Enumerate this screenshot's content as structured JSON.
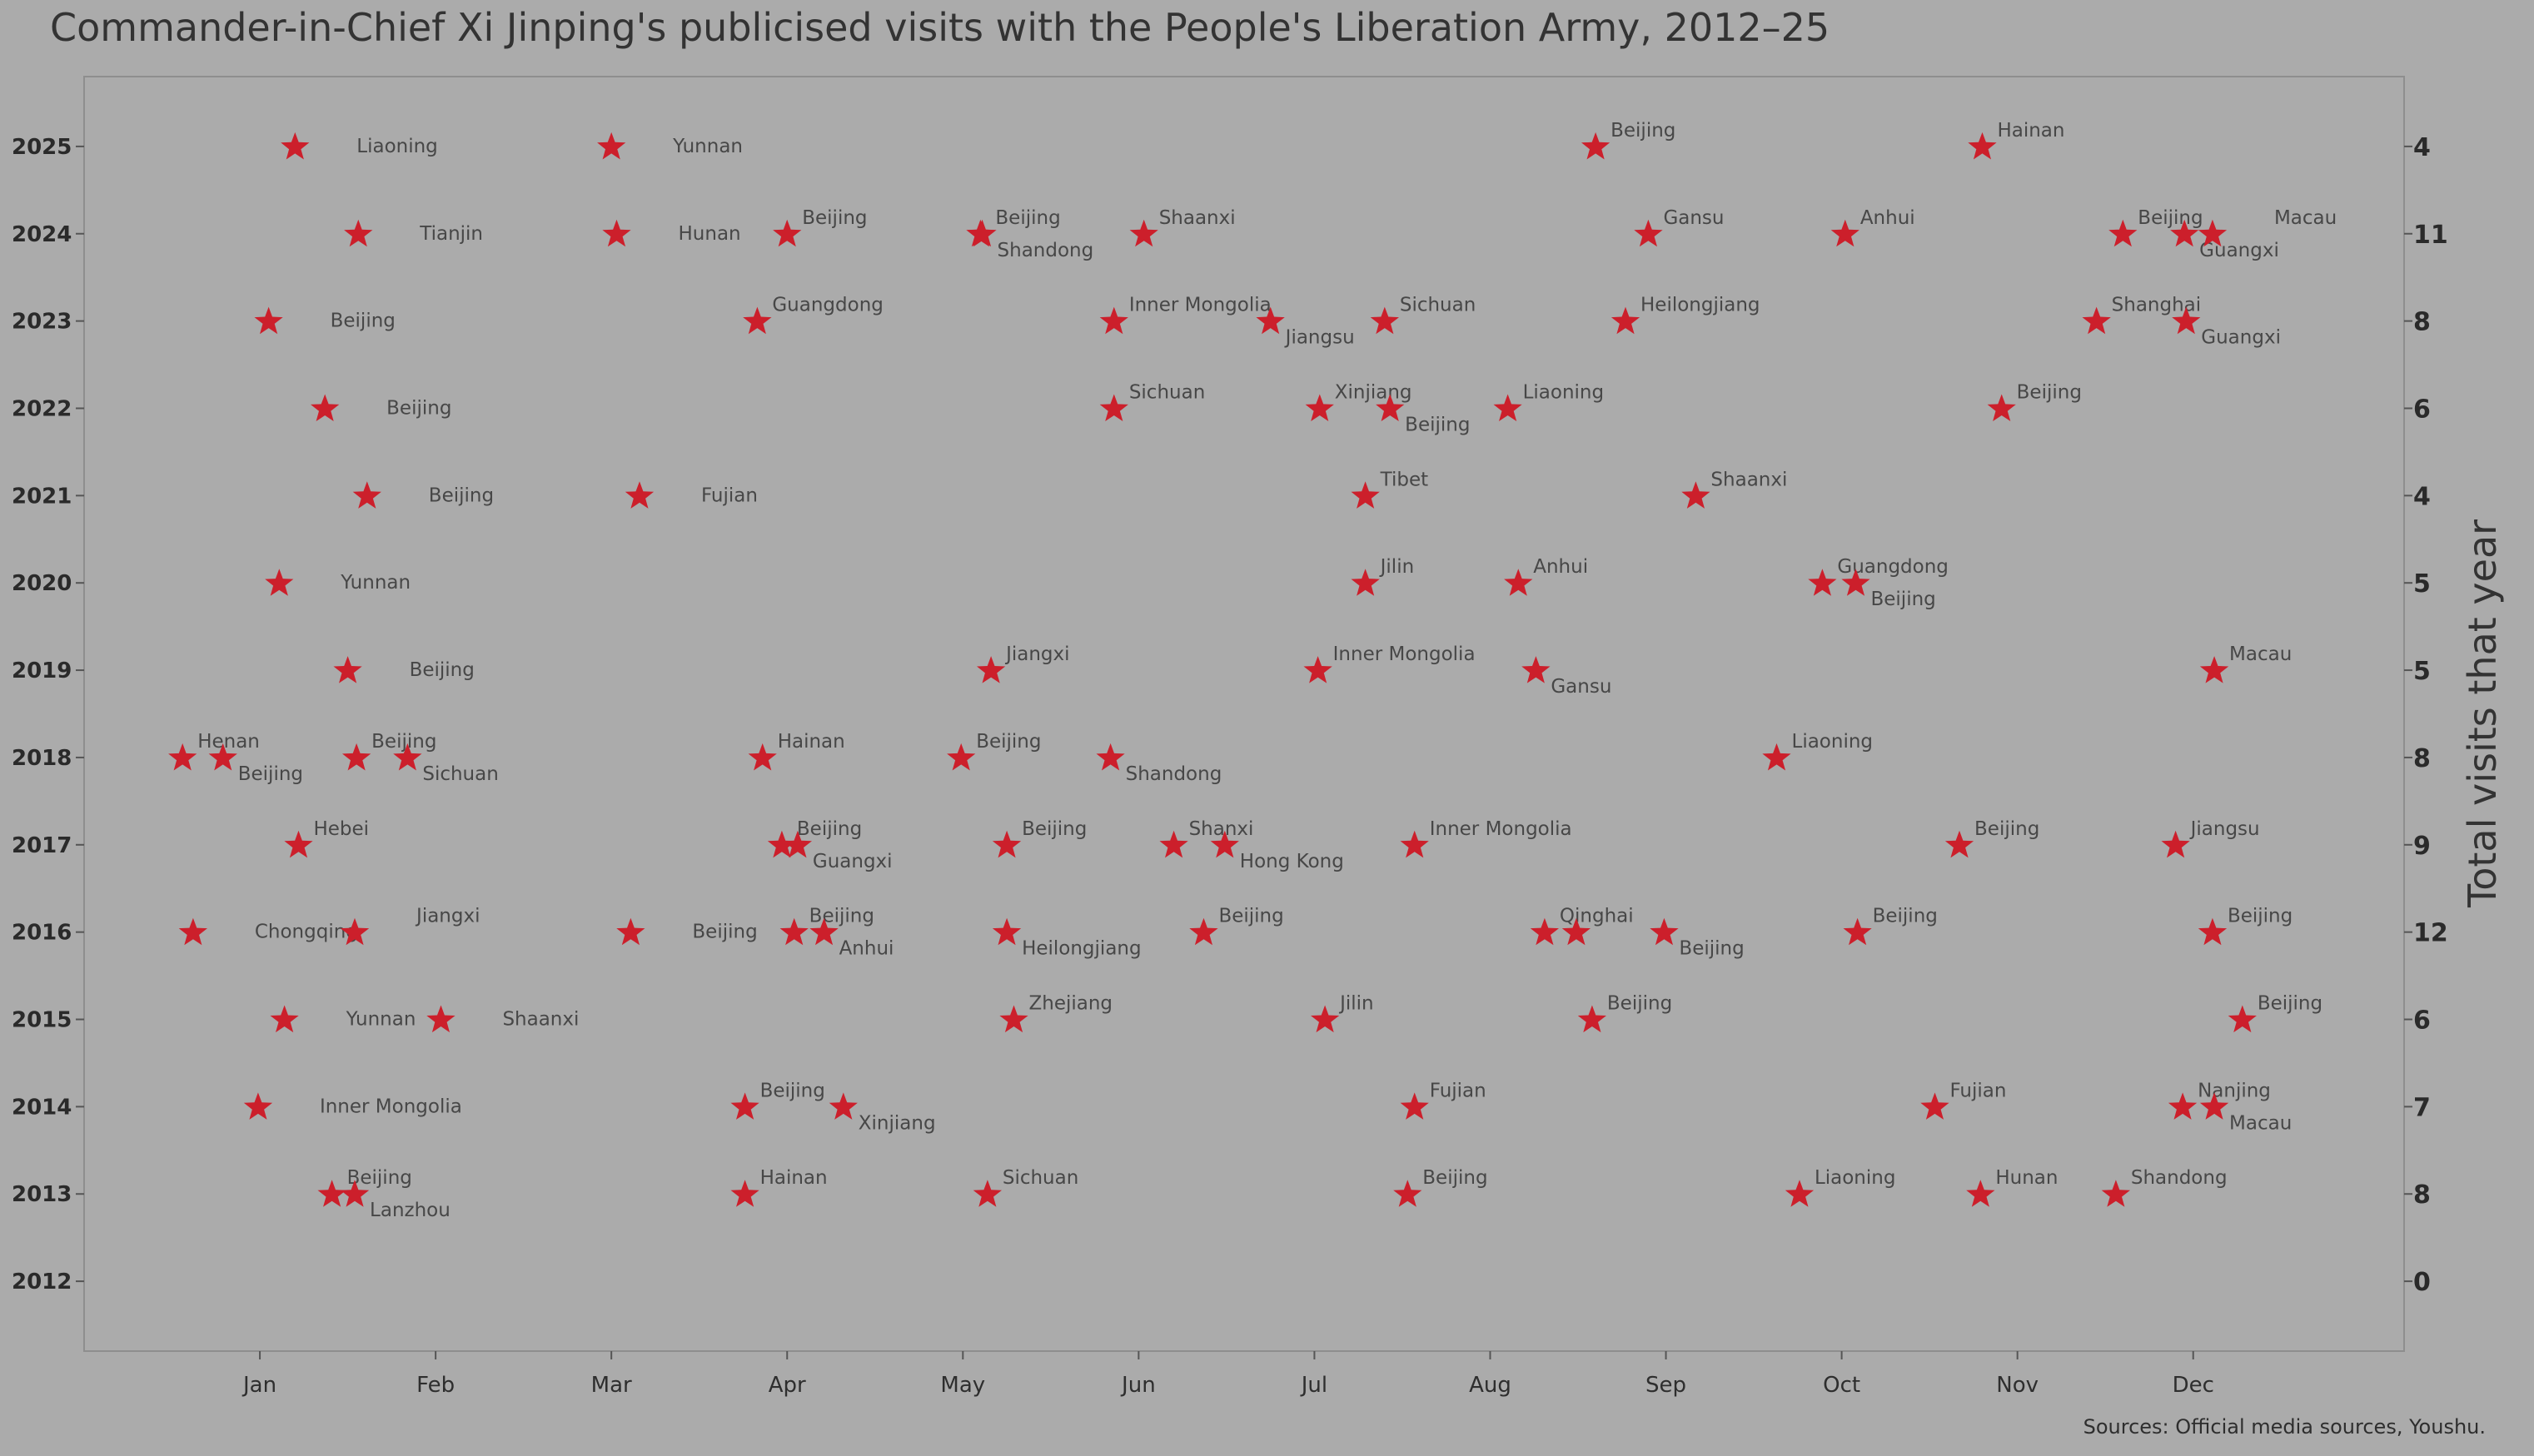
{
  "title": "Commander-in-Chief Xi Jinping's publicised visits with the People's Liberation Army, 2012–25",
  "source": "Sources: Official media sources, Youshu.",
  "chart_data": {
    "type": "scatter",
    "title": "Commander-in-Chief Xi Jinping's publicised visits with the People's Liberation Army, 2012–25",
    "xlabel": "",
    "ylabel": "",
    "ylabel_right": "Total visits that year",
    "xlim": [
      -9,
      123
    ],
    "ylim": [
      2011.2,
      2025.8
    ],
    "month_ticks": [
      "Jan",
      "Feb",
      "Mar",
      "Apr",
      "May",
      "Jun",
      "Jul",
      "Aug",
      "Sep",
      "Oct",
      "Nov",
      "Dec"
    ],
    "month_tick_days": [
      1,
      11,
      21,
      31,
      41,
      51,
      61,
      71,
      81,
      91,
      101,
      111
    ],
    "years": [
      2012,
      2013,
      2014,
      2015,
      2016,
      2017,
      2018,
      2019,
      2020,
      2021,
      2022,
      2023,
      2024,
      2025
    ],
    "totals": [
      0,
      8,
      7,
      6,
      12,
      9,
      8,
      5,
      5,
      4,
      6,
      8,
      11,
      4
    ],
    "marker": "star",
    "marker_color": "#cc1f2b",
    "grid": false,
    "points": [
      {
        "year": 2025,
        "day": 3,
        "place": "Liaoning",
        "pos": "far"
      },
      {
        "year": 2025,
        "day": 21,
        "place": "Yunnan",
        "pos": "far"
      },
      {
        "year": 2025,
        "day": 77,
        "place": "Beijing",
        "pos": "above"
      },
      {
        "year": 2025,
        "day": 99,
        "place": "Hainan",
        "pos": "above"
      },
      {
        "year": 2024,
        "day": 6.6,
        "place": "Tianjin",
        "pos": "far"
      },
      {
        "year": 2024,
        "day": 21.3,
        "place": "Hunan",
        "pos": "far"
      },
      {
        "year": 2024,
        "day": 31,
        "place": "Beijing",
        "pos": "above"
      },
      {
        "year": 2024,
        "day": 42,
        "place": "Beijing",
        "pos": "above"
      },
      {
        "year": 2024,
        "day": 42.1,
        "place": "Shandong",
        "pos": "below"
      },
      {
        "year": 2024,
        "day": 51.3,
        "place": "Shaanxi",
        "pos": "above"
      },
      {
        "year": 2024,
        "day": 80,
        "place": "Gansu",
        "pos": "above"
      },
      {
        "year": 2024,
        "day": 91.2,
        "place": "Anhui",
        "pos": "above"
      },
      {
        "year": 2024,
        "day": 107,
        "place": "Beijing",
        "pos": "above"
      },
      {
        "year": 2024,
        "day": 110.5,
        "place": "Guangxi",
        "pos": "below"
      },
      {
        "year": 2024,
        "day": 112.1,
        "place": "Macau",
        "pos": "far-above"
      },
      {
        "year": 2023,
        "day": 1.5,
        "place": "Beijing",
        "pos": "far"
      },
      {
        "year": 2023,
        "day": 29.3,
        "place": "Guangdong",
        "pos": "above"
      },
      {
        "year": 2023,
        "day": 49.6,
        "place": "Inner Mongolia",
        "pos": "above"
      },
      {
        "year": 2023,
        "day": 58.5,
        "place": "Jiangsu",
        "pos": "below"
      },
      {
        "year": 2023,
        "day": 65,
        "place": "Sichuan",
        "pos": "above"
      },
      {
        "year": 2023,
        "day": 78.7,
        "place": "Heilongjiang",
        "pos": "above"
      },
      {
        "year": 2023,
        "day": 105.5,
        "place": "Shanghai",
        "pos": "above"
      },
      {
        "year": 2023,
        "day": 110.6,
        "place": "Guangxi",
        "pos": "below"
      },
      {
        "year": 2022,
        "day": 4.7,
        "place": "Beijing",
        "pos": "far"
      },
      {
        "year": 2022,
        "day": 49.6,
        "place": "Sichuan",
        "pos": "above"
      },
      {
        "year": 2022,
        "day": 61.3,
        "place": "Xinjiang",
        "pos": "above"
      },
      {
        "year": 2022,
        "day": 65.3,
        "place": "Beijing",
        "pos": "below"
      },
      {
        "year": 2022,
        "day": 72,
        "place": "Liaoning",
        "pos": "above"
      },
      {
        "year": 2022,
        "day": 100.1,
        "place": "Beijing",
        "pos": "above"
      },
      {
        "year": 2021,
        "day": 7.1,
        "place": "Beijing",
        "pos": "far"
      },
      {
        "year": 2021,
        "day": 22.6,
        "place": "Fujian",
        "pos": "far"
      },
      {
        "year": 2021,
        "day": 63.9,
        "place": "Tibet",
        "pos": "above"
      },
      {
        "year": 2021,
        "day": 82.7,
        "place": "Shaanxi",
        "pos": "above"
      },
      {
        "year": 2020,
        "day": 2.1,
        "place": "Yunnan",
        "pos": "far"
      },
      {
        "year": 2020,
        "day": 63.9,
        "place": "Jilin",
        "pos": "above"
      },
      {
        "year": 2020,
        "day": 72.6,
        "place": "Anhui",
        "pos": "above"
      },
      {
        "year": 2020,
        "day": 89.9,
        "place": "Guangdong",
        "pos": "above"
      },
      {
        "year": 2020,
        "day": 91.8,
        "place": "Beijing",
        "pos": "below"
      },
      {
        "year": 2019,
        "day": 6,
        "place": "Beijing",
        "pos": "far"
      },
      {
        "year": 2019,
        "day": 42.6,
        "place": "Jiangxi",
        "pos": "above"
      },
      {
        "year": 2019,
        "day": 61.2,
        "place": "Inner Mongolia",
        "pos": "above"
      },
      {
        "year": 2019,
        "day": 73.6,
        "place": "Gansu",
        "pos": "below"
      },
      {
        "year": 2019,
        "day": 112.2,
        "place": "Macau",
        "pos": "above"
      },
      {
        "year": 2018,
        "day": -3.4,
        "place": "Henan",
        "pos": "above"
      },
      {
        "year": 2018,
        "day": -1.1,
        "place": "Beijing",
        "pos": "below"
      },
      {
        "year": 2018,
        "day": 6.5,
        "place": "Beijing",
        "pos": "above"
      },
      {
        "year": 2018,
        "day": 9.4,
        "place": "Sichuan",
        "pos": "below"
      },
      {
        "year": 2018,
        "day": 29.6,
        "place": "Hainan",
        "pos": "above"
      },
      {
        "year": 2018,
        "day": 40.9,
        "place": "Beijing",
        "pos": "above"
      },
      {
        "year": 2018,
        "day": 49.4,
        "place": "Shandong",
        "pos": "below"
      },
      {
        "year": 2018,
        "day": 87.3,
        "place": "Liaoning",
        "pos": "above"
      },
      {
        "year": 2017,
        "day": 3.2,
        "place": "Hebei",
        "pos": "above"
      },
      {
        "year": 2017,
        "day": 30.7,
        "place": "Beijing",
        "pos": "above"
      },
      {
        "year": 2017,
        "day": 31.6,
        "place": "Guangxi",
        "pos": "below"
      },
      {
        "year": 2017,
        "day": 43.5,
        "place": "Beijing",
        "pos": "above"
      },
      {
        "year": 2017,
        "day": 53,
        "place": "Shanxi",
        "pos": "above"
      },
      {
        "year": 2017,
        "day": 55.9,
        "place": "Hong Kong",
        "pos": "below"
      },
      {
        "year": 2017,
        "day": 66.7,
        "place": "Inner Mongolia",
        "pos": "above"
      },
      {
        "year": 2017,
        "day": 97.7,
        "place": "Beijing",
        "pos": "above"
      },
      {
        "year": 2017,
        "day": 110,
        "place": "Jiangsu",
        "pos": "above"
      },
      {
        "year": 2016,
        "day": -2.8,
        "place": "Chongqing",
        "pos": "far"
      },
      {
        "year": 2016,
        "day": 6.4,
        "place": "Jiangxi",
        "pos": "far-above"
      },
      {
        "year": 2016,
        "day": 22.1,
        "place": "Beijing",
        "pos": "far"
      },
      {
        "year": 2016,
        "day": 31.4,
        "place": "Beijing",
        "pos": "above"
      },
      {
        "year": 2016,
        "day": 33.1,
        "place": "Anhui",
        "pos": "below"
      },
      {
        "year": 2016,
        "day": 43.5,
        "place": "Heilongjiang",
        "pos": "below"
      },
      {
        "year": 2016,
        "day": 54.7,
        "place": "Beijing",
        "pos": "above"
      },
      {
        "year": 2016,
        "day": 74.1,
        "place": "Qinghai",
        "pos": "above"
      },
      {
        "year": 2016,
        "day": 75.9,
        "place": "",
        "pos": "above"
      },
      {
        "year": 2016,
        "day": 80.9,
        "place": "Beijing",
        "pos": "below"
      },
      {
        "year": 2016,
        "day": 91.9,
        "place": "Beijing",
        "pos": "above"
      },
      {
        "year": 2016,
        "day": 112.1,
        "place": "Beijing",
        "pos": "above"
      },
      {
        "year": 2015,
        "day": 2.4,
        "place": "Yunnan",
        "pos": "far"
      },
      {
        "year": 2015,
        "day": 11.3,
        "place": "Shaanxi",
        "pos": "far"
      },
      {
        "year": 2015,
        "day": 43.9,
        "place": "Zhejiang",
        "pos": "above"
      },
      {
        "year": 2015,
        "day": 61.6,
        "place": "Jilin",
        "pos": "above"
      },
      {
        "year": 2015,
        "day": 76.8,
        "place": "Beijing",
        "pos": "above"
      },
      {
        "year": 2015,
        "day": 113.8,
        "place": "Beijing",
        "pos": "above"
      },
      {
        "year": 2014,
        "day": 0.9,
        "place": "Inner Mongolia",
        "pos": "far"
      },
      {
        "year": 2014,
        "day": 28.6,
        "place": "Beijing",
        "pos": "above"
      },
      {
        "year": 2014,
        "day": 34.2,
        "place": "Xinjiang",
        "pos": "below"
      },
      {
        "year": 2014,
        "day": 66.7,
        "place": "Fujian",
        "pos": "above"
      },
      {
        "year": 2014,
        "day": 96.3,
        "place": "Fujian",
        "pos": "above"
      },
      {
        "year": 2014,
        "day": 110.4,
        "place": "Nanjing",
        "pos": "above"
      },
      {
        "year": 2014,
        "day": 112.2,
        "place": "Macau",
        "pos": "below"
      },
      {
        "year": 2013,
        "day": 5.1,
        "place": "Beijing",
        "pos": "above"
      },
      {
        "year": 2013,
        "day": 6.4,
        "place": "Lanzhou",
        "pos": "below"
      },
      {
        "year": 2013,
        "day": 28.6,
        "place": "Hainan",
        "pos": "above"
      },
      {
        "year": 2013,
        "day": 42.4,
        "place": "Sichuan",
        "pos": "above"
      },
      {
        "year": 2013,
        "day": 66.3,
        "place": "Beijing",
        "pos": "above"
      },
      {
        "year": 2013,
        "day": 88.6,
        "place": "Liaoning",
        "pos": "above"
      },
      {
        "year": 2013,
        "day": 98.9,
        "place": "Hunan",
        "pos": "above"
      },
      {
        "year": 2013,
        "day": 106.6,
        "place": "Shandong",
        "pos": "above"
      }
    ]
  }
}
